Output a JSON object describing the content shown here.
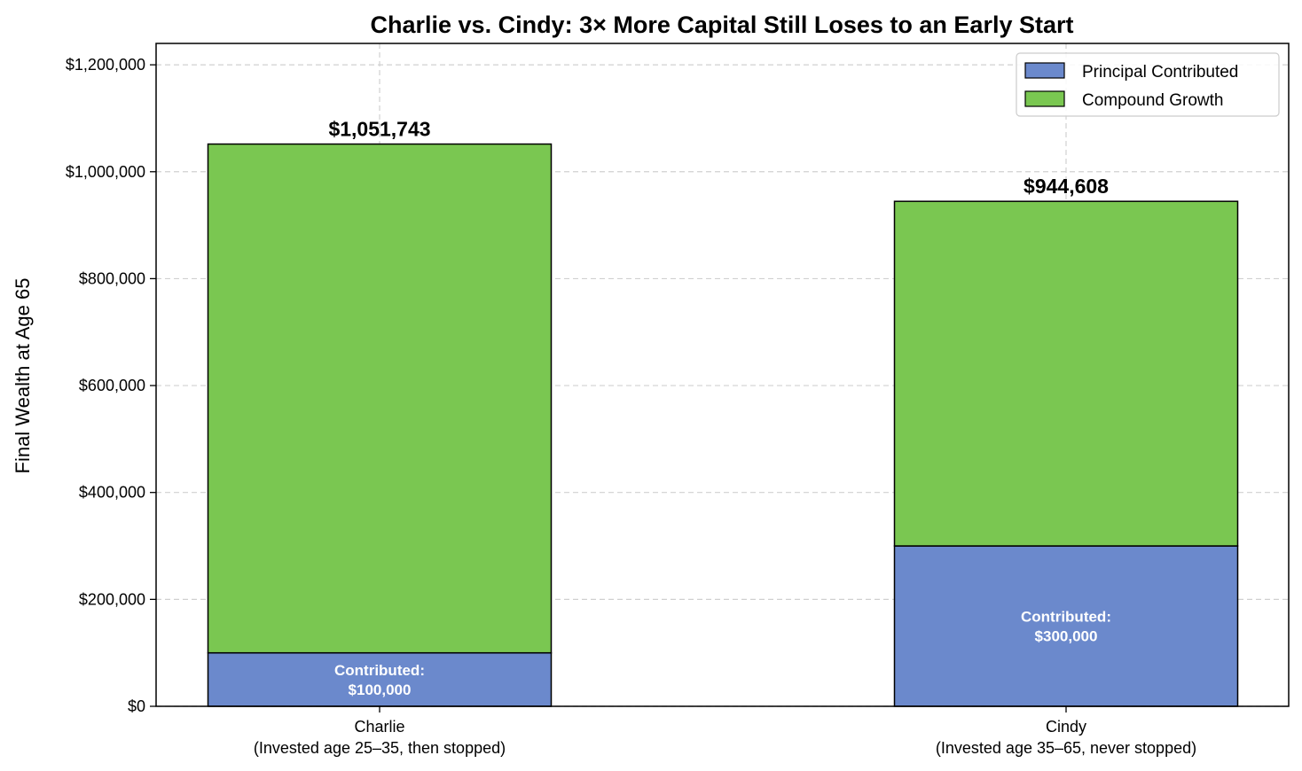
{
  "chart_data": {
    "type": "bar",
    "stacked": true,
    "title": "Charlie vs. Cindy: 3× More Capital Still Loses to an Early Start",
    "ylabel": "Final Wealth at Age 65",
    "xlabel": "",
    "categories": [
      [
        "Charlie",
        "(Invested age 25–35, then stopped)"
      ],
      [
        "Cindy",
        "(Invested age 35–65, never stopped)"
      ]
    ],
    "series": [
      {
        "name": "Principal Contributed",
        "color": "#6b89cc",
        "values": [
          100000,
          300000
        ]
      },
      {
        "name": "Compound Growth",
        "color": "#7ac751",
        "values": [
          951743,
          644608
        ]
      }
    ],
    "totals": [
      1051743,
      944608
    ],
    "total_labels": [
      "$1,051,743",
      "$944,608"
    ],
    "inbar_labels": [
      [
        "Contributed:",
        "$100,000"
      ],
      [
        "Contributed:",
        "$300,000"
      ]
    ],
    "ylim": [
      0,
      1240000
    ],
    "yticks": [
      0,
      200000,
      400000,
      600000,
      800000,
      1000000,
      1200000
    ],
    "ytick_labels": [
      "$0",
      "$200,000",
      "$400,000",
      "$600,000",
      "$800,000",
      "$1,000,000",
      "$1,200,000"
    ],
    "grid": true,
    "legend_position": "top-right"
  }
}
